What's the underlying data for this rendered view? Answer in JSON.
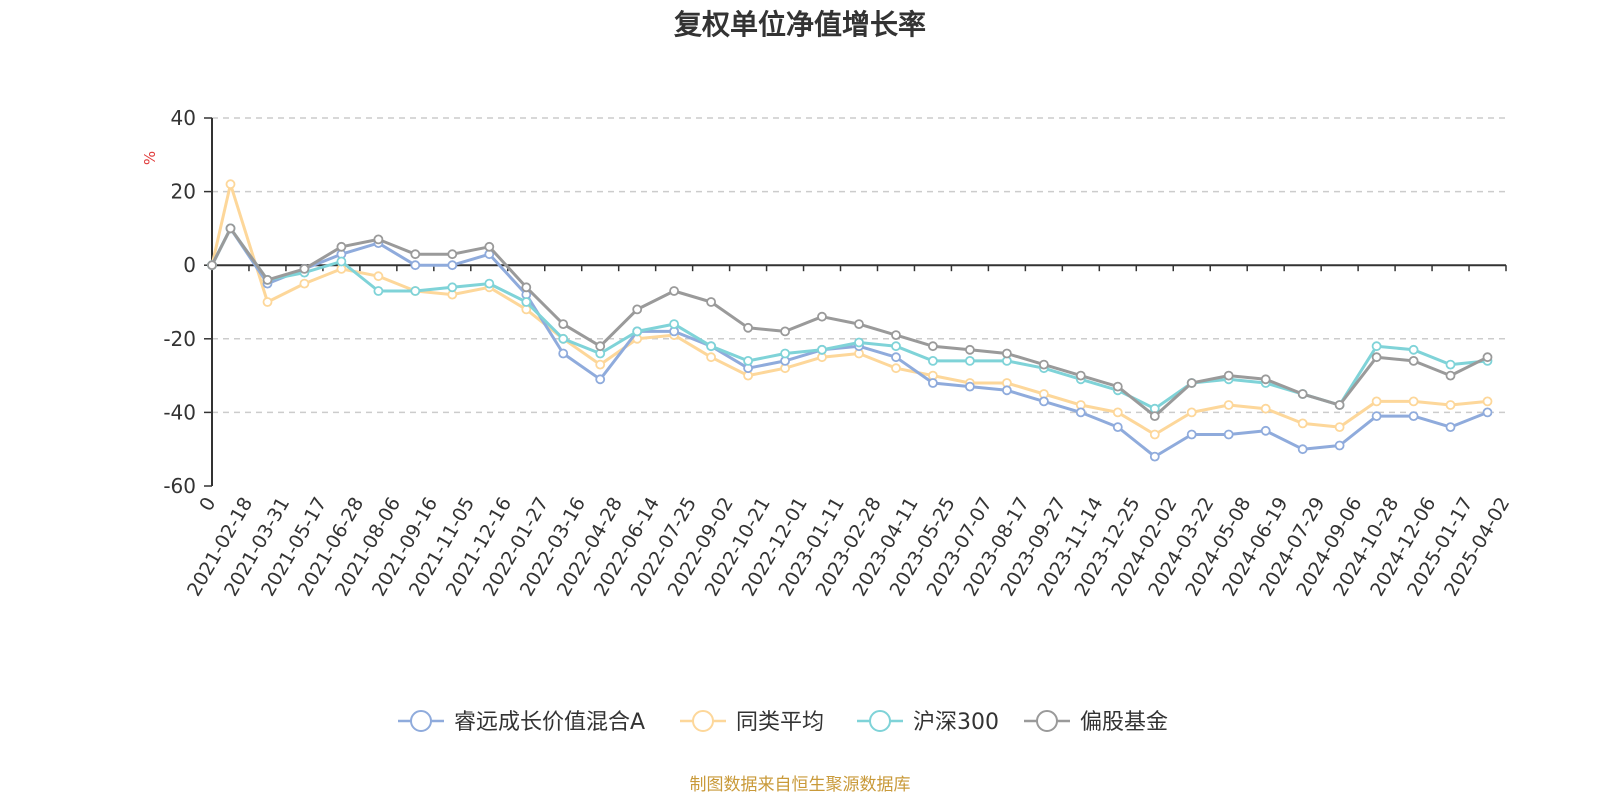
{
  "chart_data": {
    "type": "line",
    "title": "复权单位净值增长率",
    "ylabel": "%",
    "ylim": [
      -60,
      40
    ],
    "yticks": [
      -60,
      -40,
      -20,
      0,
      20,
      40
    ],
    "x_start_label": "0",
    "x_tick_labels": [
      "2021-02-18",
      "2021-03-31",
      "2021-05-17",
      "2021-06-28",
      "2021-08-06",
      "2021-09-16",
      "2021-11-05",
      "2021-12-16",
      "2022-01-27",
      "2022-03-16",
      "2022-04-28",
      "2022-06-14",
      "2022-07-25",
      "2022-09-02",
      "2022-10-21",
      "2022-12-01",
      "2023-01-11",
      "2023-02-28",
      "2023-04-11",
      "2023-05-25",
      "2023-07-07",
      "2023-08-17",
      "2023-09-27",
      "2023-11-14",
      "2023-12-25",
      "2024-02-02",
      "2024-03-22",
      "2024-05-08",
      "2024-06-19",
      "2024-07-29",
      "2024-09-06",
      "2024-10-28",
      "2024-12-06",
      "2025-01-17",
      "2025-04-02"
    ],
    "x": [
      "2021-02-18",
      "2021-03-31",
      "2021-05-17",
      "2021-06-28",
      "2021-08-06",
      "2021-09-16",
      "2021-11-05",
      "2021-12-16",
      "2022-01-27",
      "2022-03-16",
      "2022-04-28",
      "2022-06-14",
      "2022-07-25",
      "2022-09-02",
      "2022-10-21",
      "2022-12-01",
      "2023-01-11",
      "2023-02-28",
      "2023-04-11",
      "2023-05-25",
      "2023-07-07",
      "2023-08-17",
      "2023-09-27",
      "2023-11-14",
      "2023-12-25",
      "2024-02-02",
      "2024-03-22",
      "2024-05-08",
      "2024-06-19",
      "2024-07-29",
      "2024-09-06",
      "2024-10-28",
      "2024-12-06",
      "2025-01-17",
      "2025-04-02"
    ],
    "grid": true,
    "legend_position": "bottom-center",
    "series": [
      {
        "name": "睿远成长价值混合A",
        "color": "#8fabdc",
        "values": [
          10,
          -5,
          -1,
          3,
          6,
          0,
          0,
          3,
          -8,
          -24,
          -31,
          -18,
          -18,
          -22,
          -28,
          -26,
          -23,
          -22,
          -25,
          -32,
          -33,
          -34,
          -37,
          -40,
          -44,
          -52,
          -46,
          -46,
          -45,
          -50,
          -49,
          -41,
          -41,
          -44,
          -40
        ]
      },
      {
        "name": "同类平均",
        "color": "#fdd79a",
        "values": [
          22,
          -10,
          -5,
          -1,
          -3,
          -7,
          -8,
          -6,
          -12,
          -20,
          -27,
          -20,
          -19,
          -25,
          -30,
          -28,
          -25,
          -24,
          -28,
          -30,
          -32,
          -32,
          -35,
          -38,
          -40,
          -46,
          -40,
          -38,
          -39,
          -43,
          -44,
          -37,
          -37,
          -38,
          -37
        ]
      },
      {
        "name": "沪深300",
        "color": "#7fd3d8",
        "values": [
          10,
          -4,
          -2,
          1,
          -7,
          -7,
          -6,
          -5,
          -10,
          -20,
          -24,
          -18,
          -16,
          -22,
          -26,
          -24,
          -23,
          -21,
          -22,
          -26,
          -26,
          -26,
          -28,
          -31,
          -34,
          -39,
          -32,
          -31,
          -32,
          -35,
          -38,
          -22,
          -23,
          -27,
          -26
        ]
      },
      {
        "name": "偏股基金",
        "color": "#9a9a9a",
        "values": [
          10,
          -4,
          -1,
          5,
          7,
          3,
          3,
          5,
          -6,
          -16,
          -22,
          -12,
          -7,
          -10,
          -17,
          -18,
          -14,
          -16,
          -19,
          -22,
          -23,
          -24,
          -27,
          -30,
          -33,
          -41,
          -32,
          -30,
          -31,
          -35,
          -38,
          -25,
          -26,
          -30,
          -25
        ]
      }
    ]
  },
  "source_note": "制图数据来自恒生聚源数据库"
}
